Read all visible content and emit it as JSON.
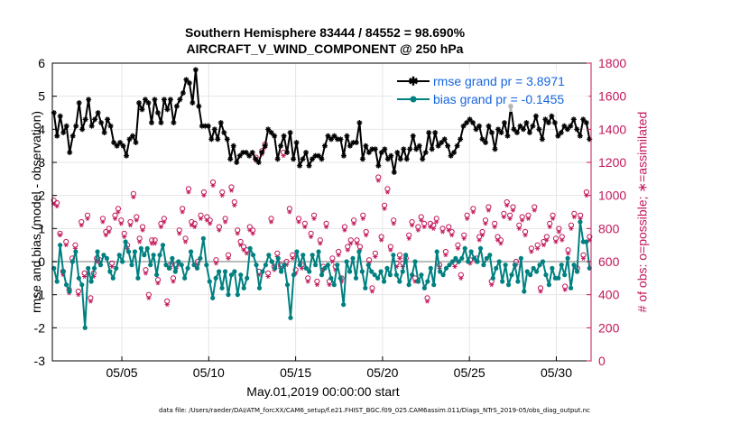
{
  "chart_data": {
    "type": "line",
    "title": "Southern Hemisphere 83444 / 84552 = 98.690%",
    "subtitle": "AIRCRAFT_V_WIND_COMPONENT @ 250 hPa",
    "xlabel": "May.01,2019 00:00:00 start",
    "ylabel_left": "rmse and bias (model - observation)",
    "ylabel_right": "# of obs: o=possible; ∗=assimilated",
    "footnote": "data file: /Users/raeder/DAI/ATM_forcXX/CAM6_setup/f.e21.FHIST_BGC.f09_025.CAM6assim.011/Diags_NTrS_2019-05/obs_diag_output.nc",
    "xlim": [
      1.0,
      32.0
    ],
    "ylim_left": [
      -3,
      6
    ],
    "ylim_right": [
      0,
      1800
    ],
    "x_ticks": [
      5,
      10,
      15,
      20,
      25,
      30
    ],
    "x_tick_labels": [
      "05/05",
      "05/10",
      "05/15",
      "05/20",
      "05/25",
      "05/30"
    ],
    "y_left_ticks": [
      "-3",
      "-2",
      "-1",
      "0",
      "1",
      "2",
      "3",
      "4",
      "5",
      "6"
    ],
    "y_right_ticks": [
      "0",
      "200",
      "400",
      "600",
      "800",
      "1000",
      "1200",
      "1400",
      "1600",
      "1800"
    ],
    "zero_line": 0,
    "legend": [
      {
        "label": "rmse grand pr = 3.8971",
        "color": "#000000"
      },
      {
        "label": "bias grand pr = -0.1455",
        "color": "#008080"
      }
    ],
    "colors": {
      "rmse": "#000000",
      "bias": "#008080",
      "counts": "#c2185b",
      "zero": "#bbbbbb"
    },
    "series": [
      {
        "name": "rmse",
        "axis": "left",
        "values": [
          4.5,
          3.8,
          4.4,
          3.9,
          4.1,
          3.3,
          3.8,
          4.1,
          4.8,
          4.0,
          4.3,
          4.9,
          4.1,
          4.3,
          4.5,
          4.2,
          3.9,
          4.3,
          4.1,
          3.6,
          3.5,
          3.6,
          3.5,
          3.2,
          3.7,
          3.8,
          3.6,
          4.8,
          4.6,
          4.9,
          4.8,
          4.2,
          4.9,
          4.5,
          4.2,
          4.9,
          4.6,
          4.9,
          4.2,
          4.7,
          4.9,
          5.1,
          5.5,
          5.4,
          4.8,
          5.8,
          4.7,
          4.1,
          4.1,
          4.1,
          3.7,
          4.0,
          3.7,
          4.2,
          3.9,
          3.7,
          3.1,
          3.5,
          3.0,
          3.2,
          3.3,
          3.3,
          3.2,
          3.3,
          3.1,
          3.0,
          3.3,
          3.5,
          4.0,
          3.9,
          3.8,
          3.1,
          3.5,
          3.8,
          3.3,
          3.9,
          3.1,
          3.6,
          2.9,
          3.1,
          3.3,
          2.9,
          3.1,
          3.2,
          3.2,
          3.1,
          3.5,
          3.8,
          3.7,
          3.8,
          3.7,
          3.7,
          3.2,
          3.8,
          3.5,
          3.6,
          3.6,
          4.2,
          3.1,
          3.5,
          3.3,
          3.4,
          3.4,
          2.9,
          3.3,
          3.4,
          3.1,
          3.2,
          2.7,
          3.3,
          3.1,
          3.4,
          3.1,
          3.4,
          3.8,
          3.4,
          3.5,
          3.1,
          3.3,
          3.9,
          3.4,
          3.9,
          3.5,
          3.6,
          3.7,
          3.5,
          3.2,
          3.3,
          3.5,
          3.7,
          4.1,
          4.2,
          4.3,
          4.2,
          4.0,
          4.1,
          3.7,
          3.6,
          4.1,
          3.9,
          3.4,
          4.0,
          3.9,
          4.2,
          3.8,
          4.7,
          4.0,
          3.9,
          4.1,
          4.0,
          4.2,
          3.9,
          4.1,
          4.4,
          4.0,
          3.7,
          4.3,
          4.2,
          4.4,
          4.2,
          3.8,
          3.9,
          4.1,
          4.0,
          4.1,
          4.3,
          4.0,
          3.8,
          4.3,
          4.2,
          3.7
        ]
      },
      {
        "name": "bias",
        "axis": "left",
        "values": [
          -0.2,
          -0.6,
          0.5,
          -0.3,
          -0.7,
          -0.9,
          0.0,
          0.3,
          -0.5,
          -0.7,
          -2.0,
          -0.2,
          -0.6,
          -0.2,
          0.3,
          -0.1,
          0.2,
          0.1,
          -0.3,
          -0.5,
          -0.2,
          0.2,
          0.0,
          0.6,
          0.3,
          -0.1,
          0.3,
          -0.5,
          0.4,
          0.2,
          0.4,
          -0.1,
          0.2,
          -0.4,
          0.2,
          0.5,
          -0.1,
          -0.2,
          0.1,
          -0.3,
          0.0,
          -0.1,
          -0.5,
          -0.2,
          0.3,
          -0.1,
          -0.2,
          0.1,
          0.7,
          -0.1,
          -0.6,
          -1.1,
          -0.5,
          -0.3,
          -0.8,
          -0.3,
          -1.0,
          -0.4,
          -0.3,
          -1.0,
          -0.4,
          -0.8,
          -0.5,
          0.4,
          0.2,
          -0.1,
          -0.8,
          -0.3,
          -0.1,
          0.2,
          0.0,
          -0.2,
          0.1,
          -0.3,
          -0.1,
          -0.7,
          -1.7,
          -0.4,
          0.3,
          -0.1,
          0.2,
          -0.2,
          -0.3,
          0.2,
          -0.1,
          0.3,
          -0.4,
          -0.2,
          -0.1,
          -0.5,
          -0.7,
          -0.1,
          -0.5,
          -1.3,
          0.0,
          -0.3,
          0.1,
          -0.5,
          0.3,
          -0.3,
          -0.8,
          -0.1,
          -0.3,
          -0.4,
          -0.5,
          -0.3,
          -0.6,
          -0.2,
          -0.4,
          0.2,
          -0.4,
          -0.6,
          -0.3,
          0.2,
          -0.7,
          -0.4,
          0.0,
          -0.6,
          -0.4,
          -0.8,
          -0.6,
          -0.2,
          -0.7,
          0.3,
          -0.3,
          -0.4,
          -0.2,
          -0.1,
          0.0,
          0.1,
          0.0,
          0.1,
          0.4,
          0.0,
          0.3,
          0.1,
          0.0,
          0.4,
          -0.1,
          0.1,
          0.2,
          -0.5,
          -0.2,
          0.0,
          -0.6,
          -0.1,
          -0.7,
          -0.4,
          -0.1,
          -0.6,
          0.1,
          -0.9,
          -0.3,
          -0.4,
          -0.2,
          -0.3,
          -0.1,
          0.0,
          -0.4,
          -0.7,
          -0.2,
          -0.5,
          -0.5,
          -0.1,
          -0.4,
          0.1,
          -0.8,
          -0.1,
          -0.3,
          1.2,
          0.6,
          0.6,
          -0.2
        ]
      },
      {
        "name": "possible",
        "axis": "right",
        "marker": "o",
        "values": [
          970,
          955,
          770,
          540,
          720,
          430,
          620,
          700,
          420,
          840,
          530,
          880,
          380,
          530,
          620,
          610,
          860,
          780,
          800,
          590,
          880,
          920,
          850,
          770,
          700,
          840,
          1010,
          870,
          740,
          810,
          550,
          400,
          730,
          730,
          490,
          830,
          860,
          360,
          580,
          500,
          580,
          790,
          920,
          740,
          1040,
          840,
          830,
          600,
          880,
          1020,
          870,
          850,
          1080,
          610,
          810,
          1020,
          860,
          640,
          1050,
          960,
          790,
          720,
          690,
          670,
          810,
          790,
          1230,
          540,
          1270,
          1310,
          530,
          860,
          570,
          650,
          580,
          1260,
          600,
          920,
          640,
          550,
          860,
          580,
          830,
          500,
          770,
          880,
          480,
          730,
          570,
          830,
          480,
          620,
          570,
          660,
          500,
          810,
          690,
          730,
          850,
          730,
          690,
          880,
          780,
          610,
          440,
          650,
          1110,
          750,
          940,
          1040,
          690,
          850,
          590,
          640,
          590,
          620,
          760,
          840,
          500,
          810,
          870,
          830,
          380,
          830,
          820,
          860,
          580,
          800,
          660,
          810,
          780,
          590,
          700,
          520,
          760,
          880,
          610,
          920,
          620,
          750,
          780,
          850,
          930,
          480,
          830,
          750,
          730,
          890,
          960,
          880,
          930,
          600,
          820,
          870,
          780,
          880,
          680,
          930,
          700,
          440,
          720,
          750,
          830,
          880,
          740,
          800,
          750,
          450,
          670,
          820,
          890,
          560,
          880,
          640,
          1020,
          750
        ]
      },
      {
        "name": "assimilated",
        "axis": "right",
        "marker": "*",
        "values": [
          950,
          935,
          760,
          520,
          700,
          410,
          600,
          680,
          400,
          820,
          510,
          860,
          360,
          510,
          600,
          590,
          840,
          760,
          780,
          570,
          860,
          900,
          830,
          750,
          680,
          820,
          990,
          850,
          720,
          790,
          530,
          380,
          710,
          710,
          470,
          810,
          840,
          340,
          560,
          480,
          560,
          770,
          900,
          720,
          1020,
          820,
          810,
          580,
          860,
          1000,
          850,
          830,
          1060,
          590,
          790,
          1000,
          840,
          620,
          1030,
          940,
          770,
          700,
          670,
          650,
          790,
          770,
          1210,
          520,
          1250,
          1290,
          510,
          840,
          550,
          630,
          560,
          1240,
          580,
          900,
          620,
          530,
          840,
          560,
          810,
          480,
          750,
          860,
          460,
          710,
          550,
          810,
          460,
          600,
          550,
          640,
          480,
          790,
          670,
          710,
          830,
          710,
          670,
          860,
          760,
          590,
          420,
          630,
          1090,
          730,
          920,
          1020,
          670,
          830,
          570,
          620,
          570,
          600,
          740,
          820,
          480,
          790,
          850,
          810,
          360,
          810,
          800,
          840,
          560,
          780,
          640,
          790,
          760,
          570,
          680,
          500,
          740,
          860,
          590,
          900,
          600,
          730,
          760,
          830,
          910,
          460,
          810,
          730,
          710,
          870,
          940,
          860,
          910,
          580,
          800,
          850,
          760,
          860,
          660,
          910,
          680,
          420,
          700,
          730,
          810,
          860,
          720,
          780,
          730,
          430,
          650,
          800,
          870,
          540,
          860,
          620,
          1000,
          730
        ]
      }
    ]
  }
}
